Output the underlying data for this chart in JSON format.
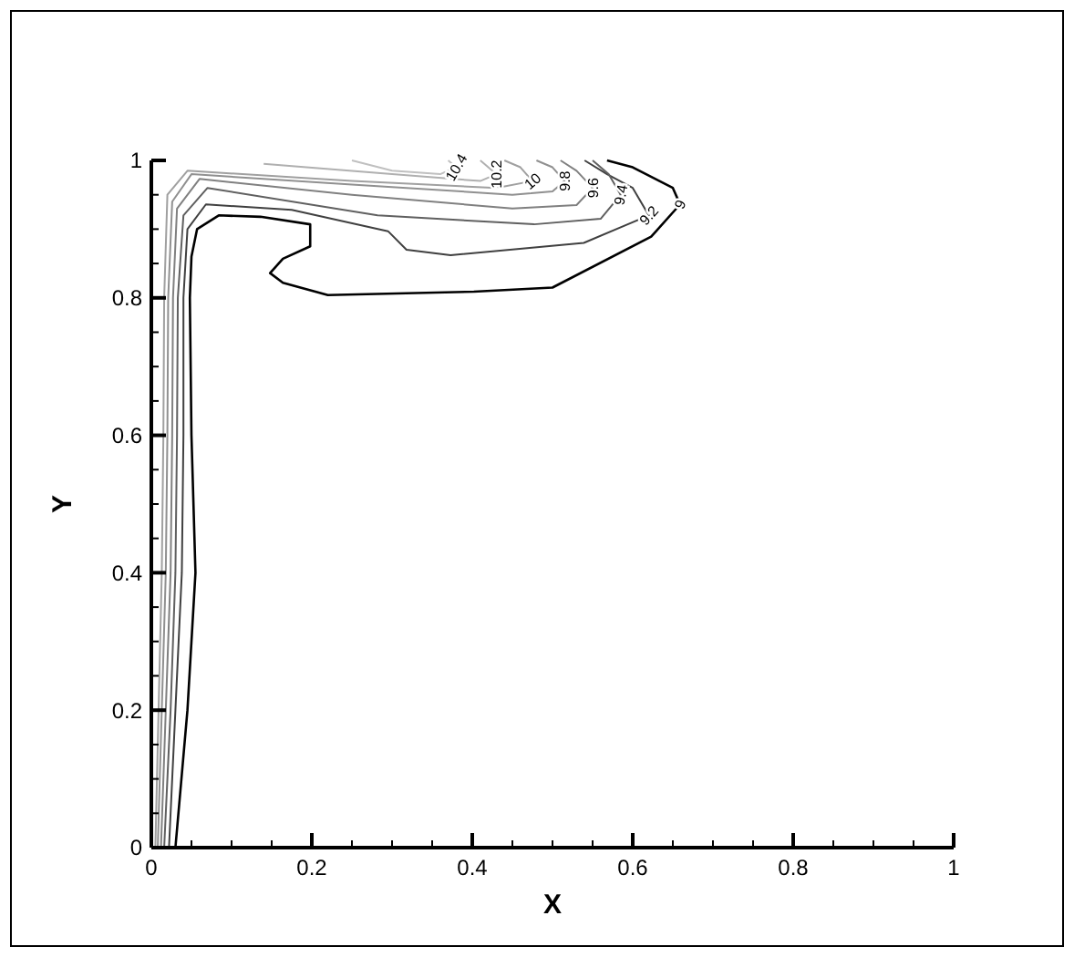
{
  "chart_data": {
    "type": "line",
    "xlabel": "X",
    "ylabel": "Y",
    "xlim": [
      0,
      1
    ],
    "ylim": [
      0,
      1
    ],
    "xticks": [
      0,
      0.2,
      0.4,
      0.6,
      0.8,
      1
    ],
    "yticks": [
      0,
      0.2,
      0.4,
      0.6,
      0.8,
      1
    ],
    "marker": "none",
    "line_style": "solid",
    "series": [
      {
        "name": "9",
        "color": "#000000",
        "x": [
          0.03,
          0.045,
          0.055,
          0.05,
          0.048,
          0.05,
          0.057,
          0.084,
          0.136,
          0.198,
          0.198,
          0.164,
          0.148,
          0.164,
          0.22,
          0.402,
          0.5,
          0.623,
          0.659,
          0.65,
          0.6,
          0.568
        ],
        "values": [
          0,
          0.2,
          0.4,
          0.6,
          0.8,
          0.86,
          0.9,
          0.92,
          0.918,
          0.907,
          0.875,
          0.857,
          0.836,
          0.822,
          0.804,
          0.809,
          0.815,
          0.889,
          0.936,
          0.96,
          0.99,
          1
        ]
      },
      {
        "name": "9.2",
        "color": "#404040",
        "x": [
          0.022,
          0.03,
          0.038,
          0.04,
          0.04,
          0.045,
          0.068,
          0.175,
          0.295,
          0.318,
          0.373,
          0.539,
          0.62,
          0.6,
          0.568,
          0.54
        ],
        "values": [
          0,
          0.2,
          0.4,
          0.6,
          0.8,
          0.9,
          0.936,
          0.928,
          0.897,
          0.87,
          0.862,
          0.88,
          0.92,
          0.96,
          0.98,
          1
        ]
      },
      {
        "name": "9.4",
        "color": "#606060",
        "x": [
          0.016,
          0.024,
          0.03,
          0.032,
          0.033,
          0.04,
          0.07,
          0.282,
          0.477,
          0.56,
          0.585,
          0.57,
          0.55
        ],
        "values": [
          0,
          0.2,
          0.4,
          0.6,
          0.8,
          0.92,
          0.96,
          0.92,
          0.907,
          0.915,
          0.95,
          0.98,
          1
        ]
      },
      {
        "name": "9.6",
        "color": "#808080",
        "x": [
          0.012,
          0.018,
          0.024,
          0.026,
          0.027,
          0.032,
          0.06,
          0.25,
          0.45,
          0.53,
          0.55,
          0.53,
          0.51
        ],
        "values": [
          0,
          0.2,
          0.4,
          0.6,
          0.8,
          0.93,
          0.973,
          0.95,
          0.93,
          0.935,
          0.96,
          0.985,
          1
        ]
      },
      {
        "name": "9.8",
        "color": "#909090",
        "x": [
          0.008,
          0.013,
          0.018,
          0.02,
          0.021,
          0.026,
          0.05,
          0.25,
          0.45,
          0.5,
          0.515,
          0.5,
          0.48
        ],
        "values": [
          0,
          0.2,
          0.4,
          0.6,
          0.8,
          0.94,
          0.98,
          0.965,
          0.95,
          0.955,
          0.97,
          0.99,
          1
        ]
      },
      {
        "name": "10",
        "color": "#a0a0a0",
        "x": [
          0.005,
          0.009,
          0.013,
          0.015,
          0.016,
          0.02,
          0.045,
          0.25,
          0.43,
          0.475,
          0.46,
          0.44
        ],
        "values": [
          0,
          0.2,
          0.4,
          0.6,
          0.8,
          0.95,
          0.985,
          0.97,
          0.96,
          0.97,
          0.99,
          1
        ]
      },
      {
        "name": "10.2",
        "color": "#b0b0b0",
        "x": [
          0.14,
          0.3,
          0.41,
          0.43,
          0.41
        ],
        "values": [
          0.995,
          0.98,
          0.97,
          0.98,
          1
        ]
      },
      {
        "name": "10.4",
        "color": "#c0c0c0",
        "x": [
          0.25,
          0.3,
          0.36,
          0.38,
          0.37
        ],
        "values": [
          1,
          0.985,
          0.98,
          0.99,
          1
        ]
      }
    ]
  }
}
